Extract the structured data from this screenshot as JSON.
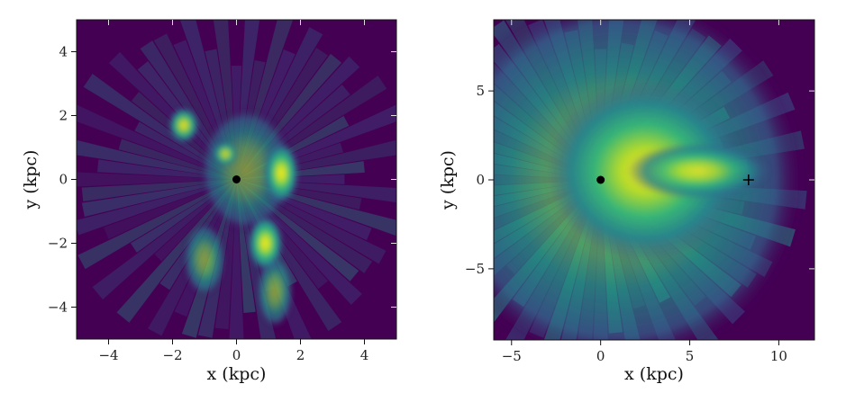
{
  "chart_data": [
    {
      "type": "heatmap",
      "title": "",
      "xlabel": "x (kpc)",
      "ylabel": "y (kpc)",
      "xlim": [
        -5,
        5
      ],
      "ylim": [
        -5,
        5
      ],
      "xticks": [
        -4,
        -2,
        0,
        2,
        4
      ],
      "yticks": [
        -4,
        -2,
        0,
        2,
        4
      ],
      "xtick_labels": [
        "−4",
        "−2",
        "0",
        "2",
        "4"
      ],
      "ytick_labels": [
        "−4",
        "−2",
        "0",
        "2",
        "4"
      ],
      "colormap": "viridis",
      "background_color": "#440154",
      "grid": false,
      "markers": [
        {
          "symbol": "dot",
          "x": 0,
          "y": 0,
          "color": "#000000"
        }
      ],
      "hotspots": [
        {
          "x": 1.4,
          "y": 0.2,
          "rx": 0.35,
          "ry": 0.6,
          "level": 1.0
        },
        {
          "x": 0.9,
          "y": -2.0,
          "rx": 0.35,
          "ry": 0.55,
          "level": 0.95
        },
        {
          "x": -1.65,
          "y": 1.7,
          "rx": 0.3,
          "ry": 0.35,
          "level": 0.85
        },
        {
          "x": -0.35,
          "y": 0.8,
          "rx": 0.25,
          "ry": 0.25,
          "level": 0.7
        },
        {
          "x": -1.0,
          "y": -2.5,
          "rx": 0.4,
          "ry": 0.7,
          "level": 0.45
        },
        {
          "x": 1.2,
          "y": -3.5,
          "rx": 0.35,
          "ry": 0.7,
          "level": 0.5
        },
        {
          "x": 0.3,
          "y": 0.3,
          "rx": 0.9,
          "ry": 1.2,
          "level": 0.35
        }
      ]
    },
    {
      "type": "heatmap",
      "title": "",
      "xlabel": "x (kpc)",
      "ylabel": "y (kpc)",
      "xlim": [
        -6,
        12
      ],
      "ylim": [
        -9,
        9
      ],
      "xticks": [
        -5,
        0,
        5,
        10
      ],
      "yticks": [
        -5,
        0,
        5
      ],
      "xtick_labels": [
        "−5",
        "0",
        "5",
        "10"
      ],
      "ytick_labels": [
        "−5",
        "0",
        "5"
      ],
      "colormap": "viridis",
      "background_color": "#440154",
      "grid": false,
      "markers": [
        {
          "symbol": "dot",
          "x": 0,
          "y": 0,
          "color": "#000000"
        },
        {
          "symbol": "plus",
          "x": 8.3,
          "y": 0,
          "color": "#000000"
        }
      ],
      "hotspots": [
        {
          "x": 2.5,
          "y": 0.5,
          "rx": 3.5,
          "ry": 3.2,
          "level": 0.85
        },
        {
          "x": 5.5,
          "y": 0.5,
          "rx": 2.5,
          "ry": 1.0,
          "level": 0.7
        },
        {
          "x": 1.0,
          "y": 0.0,
          "rx": 6.5,
          "ry": 6.5,
          "level": 0.45
        }
      ]
    }
  ]
}
